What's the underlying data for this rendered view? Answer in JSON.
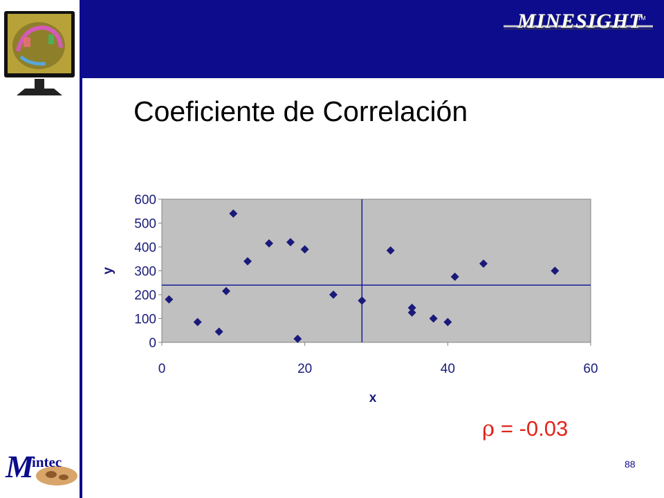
{
  "header": {
    "brand_name": "MINESIGHT",
    "brand_tm": "TM",
    "colors": {
      "band": "#0c0c8c",
      "accent_red": "#e1241a"
    }
  },
  "title": "Coeficiente de Correlación",
  "chart_data": {
    "type": "scatter",
    "title": "",
    "xlabel": "x",
    "ylabel": "y",
    "xlim": [
      0,
      60
    ],
    "ylim": [
      0,
      600
    ],
    "xticks": [
      0,
      20,
      40,
      60
    ],
    "yticks": [
      0,
      100,
      200,
      300,
      400,
      500,
      600
    ],
    "grid": false,
    "plot_background": "#c0c0c0",
    "marker": "diamond",
    "marker_color": "#1a1a7a",
    "mean_lines": {
      "x": 28,
      "y": 240
    },
    "points": [
      {
        "x": 1,
        "y": 180
      },
      {
        "x": 5,
        "y": 85
      },
      {
        "x": 8,
        "y": 45
      },
      {
        "x": 9,
        "y": 215
      },
      {
        "x": 10,
        "y": 540
      },
      {
        "x": 12,
        "y": 340
      },
      {
        "x": 15,
        "y": 415
      },
      {
        "x": 18,
        "y": 420
      },
      {
        "x": 19,
        "y": 15
      },
      {
        "x": 20,
        "y": 390
      },
      {
        "x": 24,
        "y": 200
      },
      {
        "x": 28,
        "y": 175
      },
      {
        "x": 32,
        "y": 385
      },
      {
        "x": 35,
        "y": 145
      },
      {
        "x": 35,
        "y": 125
      },
      {
        "x": 38,
        "y": 100
      },
      {
        "x": 40,
        "y": 85
      },
      {
        "x": 41,
        "y": 275
      },
      {
        "x": 45,
        "y": 330
      },
      {
        "x": 55,
        "y": 300
      }
    ]
  },
  "coefficient": {
    "symbol": "ρ",
    "text": " = -0.03"
  },
  "footer": {
    "page_number": "88",
    "company_logo_text": "intec",
    "company_logo_initial": "M"
  }
}
